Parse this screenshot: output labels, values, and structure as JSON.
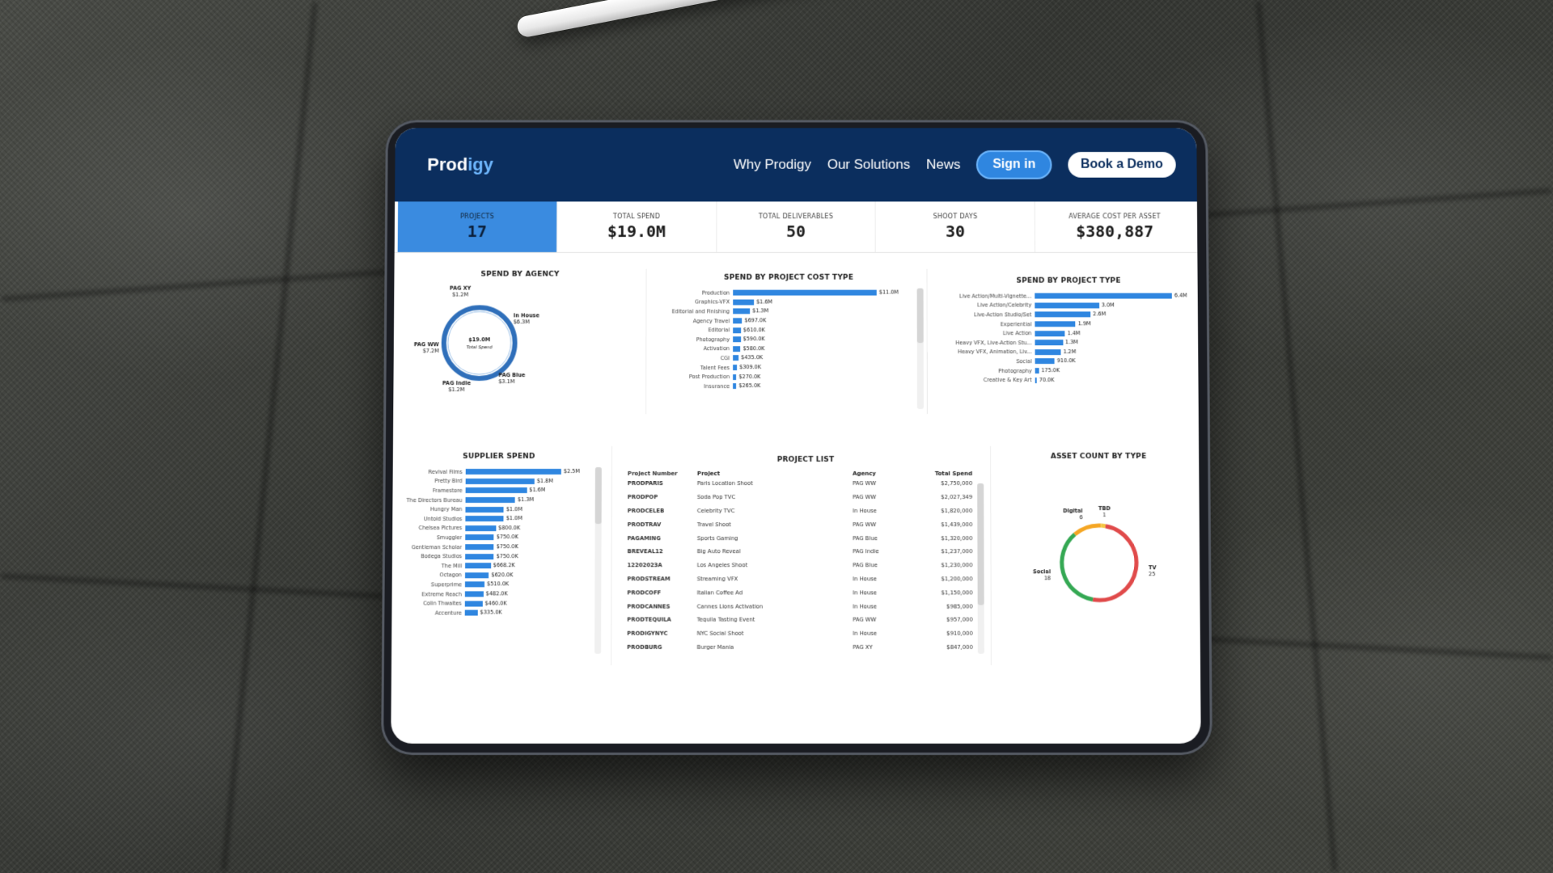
{
  "nav": {
    "brand_a": "Prod",
    "brand_b": "igy",
    "links": [
      "Why Prodigy",
      "Our Solutions",
      "News"
    ],
    "signin": "Sign in",
    "demo": "Book a Demo"
  },
  "kpis": [
    {
      "label": "PROJECTS",
      "value": "17"
    },
    {
      "label": "TOTAL SPEND",
      "value": "$19.0M"
    },
    {
      "label": "TOTAL DELIVERABLES",
      "value": "50"
    },
    {
      "label": "SHOOT DAYS",
      "value": "30"
    },
    {
      "label": "AVERAGE COST PER ASSET",
      "value": "$380,887"
    }
  ],
  "agency": {
    "title": "SPEND BY AGENCY",
    "center_value": "$19.0M",
    "center_label": "Total Spend",
    "labels": [
      {
        "name": "PAG XY",
        "value": "$1.2M"
      },
      {
        "name": "In House",
        "value": "$6.3M"
      },
      {
        "name": "PAG Blue",
        "value": "$3.1M"
      },
      {
        "name": "PAG Indie",
        "value": "$1.2M"
      },
      {
        "name": "PAG WW",
        "value": "$7.2M"
      }
    ],
    "color": "#2f6fba"
  },
  "cost_type": {
    "title": "SPEND BY PROJECT COST TYPE",
    "items": [
      {
        "label": "Production",
        "value": 11.0,
        "text": "$11.0M"
      },
      {
        "label": "Graphics-VFX",
        "value": 1.6,
        "text": "$1.6M"
      },
      {
        "label": "Editorial and Finishing",
        "value": 1.3,
        "text": "$1.3M"
      },
      {
        "label": "Agency Travel",
        "value": 0.697,
        "text": "$697.0K"
      },
      {
        "label": "Editorial",
        "value": 0.61,
        "text": "$610.0K"
      },
      {
        "label": "Photography",
        "value": 0.59,
        "text": "$590.0K"
      },
      {
        "label": "Activation",
        "value": 0.58,
        "text": "$580.0K"
      },
      {
        "label": "CGI",
        "value": 0.435,
        "text": "$435.0K"
      },
      {
        "label": "Talent Fees",
        "value": 0.309,
        "text": "$309.0K"
      },
      {
        "label": "Post Production",
        "value": 0.27,
        "text": "$270.0K"
      },
      {
        "label": "Insurance",
        "value": 0.265,
        "text": "$265.0K"
      }
    ]
  },
  "project_type": {
    "title": "SPEND BY PROJECT TYPE",
    "items": [
      {
        "label": "Live Action/Multi-Vignette...",
        "value": 6.4,
        "text": "6.4M"
      },
      {
        "label": "Live Action/Celebrity",
        "value": 3.0,
        "text": "3.0M"
      },
      {
        "label": "Live-Action Studio/Set",
        "value": 2.6,
        "text": "2.6M"
      },
      {
        "label": "Experiential",
        "value": 1.9,
        "text": "1.9M"
      },
      {
        "label": "Live Action",
        "value": 1.4,
        "text": "1.4M"
      },
      {
        "label": "Heavy VFX, Live-Action Stu...",
        "value": 1.3,
        "text": "1.3M"
      },
      {
        "label": "Heavy VFX, Animation, Liv...",
        "value": 1.2,
        "text": "1.2M"
      },
      {
        "label": "Social",
        "value": 0.91,
        "text": "910.0K"
      },
      {
        "label": "Photography",
        "value": 0.175,
        "text": "175.0K"
      },
      {
        "label": "Creative & Key Art",
        "value": 0.07,
        "text": "70.0K"
      }
    ]
  },
  "supplier": {
    "title": "SUPPLIER SPEND",
    "items": [
      {
        "label": "Revival Films",
        "value": 2.5,
        "text": "$2.5M"
      },
      {
        "label": "Pretty Bird",
        "value": 1.8,
        "text": "$1.8M"
      },
      {
        "label": "Framestore",
        "value": 1.6,
        "text": "$1.6M"
      },
      {
        "label": "The Directors Bureau",
        "value": 1.3,
        "text": "$1.3M"
      },
      {
        "label": "Hungry Man",
        "value": 1.0,
        "text": "$1.0M"
      },
      {
        "label": "Untold Studios",
        "value": 1.0,
        "text": "$1.0M"
      },
      {
        "label": "Chelsea Pictures",
        "value": 0.8,
        "text": "$800.0K"
      },
      {
        "label": "Smuggler",
        "value": 0.75,
        "text": "$750.0K"
      },
      {
        "label": "Gentleman Scholar",
        "value": 0.75,
        "text": "$750.0K"
      },
      {
        "label": "Bodega Studios",
        "value": 0.75,
        "text": "$750.0K"
      },
      {
        "label": "The Mill",
        "value": 0.6682,
        "text": "$668.2K"
      },
      {
        "label": "Octagon",
        "value": 0.62,
        "text": "$620.0K"
      },
      {
        "label": "Superprime",
        "value": 0.51,
        "text": "$510.0K"
      },
      {
        "label": "Extreme Reach",
        "value": 0.482,
        "text": "$482.0K"
      },
      {
        "label": "Colin Thwaites",
        "value": 0.46,
        "text": "$460.0K"
      },
      {
        "label": "Accenture",
        "value": 0.335,
        "text": "$335.0K"
      }
    ]
  },
  "project_list": {
    "title": "PROJECT LIST",
    "headers": {
      "num": "Project Number",
      "proj": "Project",
      "agency": "Agency",
      "spend": "Total Spend"
    },
    "rows": [
      {
        "num": "PRODPARIS",
        "proj": "Paris Location Shoot",
        "agency": "PAG WW",
        "spend": "$2,750,000"
      },
      {
        "num": "PRODPOP",
        "proj": "Soda Pop TVC",
        "agency": "PAG WW",
        "spend": "$2,027,349"
      },
      {
        "num": "PRODCELEB",
        "proj": "Celebrity TVC",
        "agency": "In House",
        "spend": "$1,820,000"
      },
      {
        "num": "PRODTRAV",
        "proj": "Travel Shoot",
        "agency": "PAG WW",
        "spend": "$1,439,000"
      },
      {
        "num": "PAGAMING",
        "proj": "Sports Gaming",
        "agency": "PAG Blue",
        "spend": "$1,320,000"
      },
      {
        "num": "BREVEAL12",
        "proj": "Big Auto Reveal",
        "agency": "PAG Indie",
        "spend": "$1,237,000"
      },
      {
        "num": "12202023A",
        "proj": "Los Angeles Shoot",
        "agency": "PAG Blue",
        "spend": "$1,230,000"
      },
      {
        "num": "PRODSTREAM",
        "proj": "Streaming VFX",
        "agency": "In House",
        "spend": "$1,200,000"
      },
      {
        "num": "PRODCOFF",
        "proj": "Italian Coffee Ad",
        "agency": "In House",
        "spend": "$1,150,000"
      },
      {
        "num": "PRODCANNES",
        "proj": "Cannes Lions Activation",
        "agency": "In House",
        "spend": "$985,000"
      },
      {
        "num": "PRODTEQUILA",
        "proj": "Tequila Tasting Event",
        "agency": "PAG WW",
        "spend": "$957,000"
      },
      {
        "num": "PRODIGYNYC",
        "proj": "NYC Social Shoot",
        "agency": "In House",
        "spend": "$910,000"
      },
      {
        "num": "PRODBURG",
        "proj": "Burger Mania",
        "agency": "PAG XY",
        "spend": "$847,000"
      }
    ]
  },
  "asset_count": {
    "title": "ASSET COUNT BY TYPE",
    "chart_data": {
      "type": "pie",
      "categories": [
        "TV",
        "Social",
        "Digital",
        "TBD"
      ],
      "values": [
        25,
        18,
        6,
        1
      ],
      "colors": [
        "#e04a4a",
        "#34a853",
        "#f5a623",
        "#f4c542"
      ]
    }
  }
}
